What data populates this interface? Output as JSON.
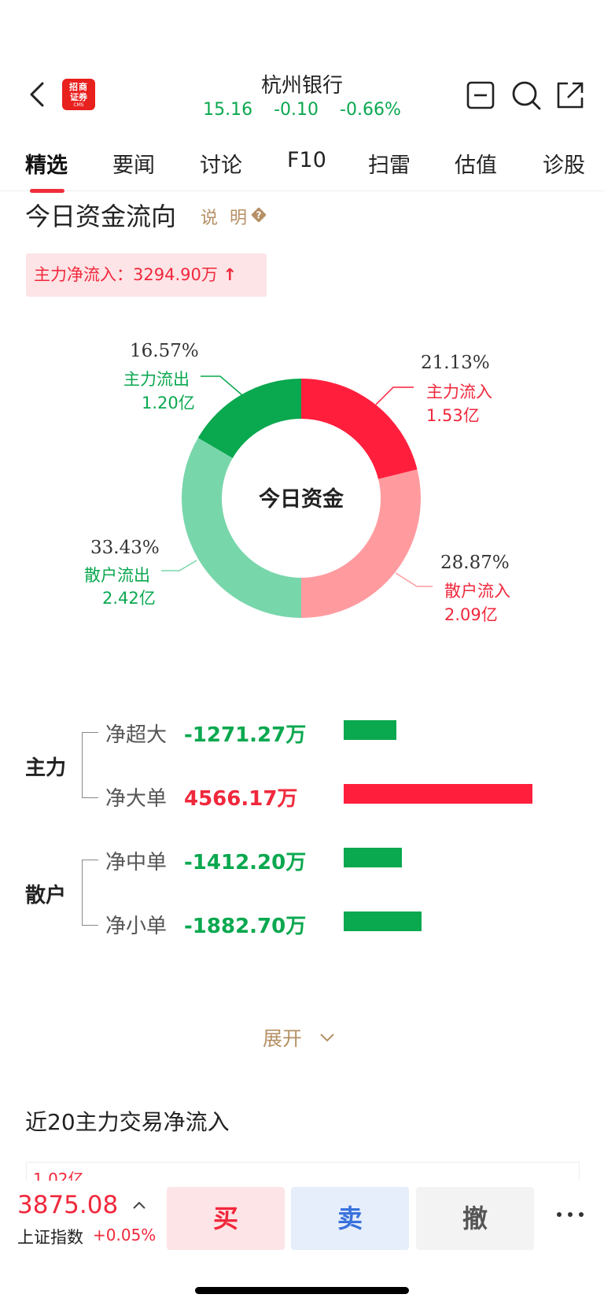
{
  "header": {
    "title": "杭州银行",
    "price": "15.16",
    "change": "-0.10",
    "change_pct": "-0.66%",
    "logo": {
      "line1": "招商",
      "line2": "证券",
      "line3": "CMS"
    },
    "icons": [
      "back-icon",
      "minus-box-icon",
      "search-icon",
      "share-icon"
    ]
  },
  "tabs": [
    {
      "label": "精选",
      "active": true
    },
    {
      "label": "要闻"
    },
    {
      "label": "讨论"
    },
    {
      "label": "F10"
    },
    {
      "label": "扫雷"
    },
    {
      "label": "估值"
    },
    {
      "label": "诊股"
    }
  ],
  "fund_flow": {
    "title": "今日资金流向",
    "help_label": "说 明",
    "net_inflow_label": "主力净流入：3294.90万",
    "donut": {
      "center_label": "今日资金",
      "segments": [
        {
          "name": "主力流入",
          "pct": "21.13%",
          "amount": "1.53亿",
          "value": 21.13,
          "color": "#ff1f3d"
        },
        {
          "name": "散户流入",
          "pct": "28.87%",
          "amount": "2.09亿",
          "value": 28.87,
          "color": "#ff9b9f"
        },
        {
          "name": "散户流出",
          "pct": "33.43%",
          "amount": "2.42亿",
          "value": 33.43,
          "color": "#78d6ab"
        },
        {
          "name": "主力流出",
          "pct": "16.57%",
          "amount": "1.20亿",
          "value": 16.57,
          "color": "#0aa84f"
        }
      ]
    },
    "groups": [
      {
        "label": "主力",
        "rows": [
          {
            "name": "净超大",
            "value": "-1271.27万",
            "amount": -1271.27
          },
          {
            "name": "净大单",
            "value": "4566.17万",
            "amount": 4566.17
          }
        ]
      },
      {
        "label": "散户",
        "rows": [
          {
            "name": "净中单",
            "value": "-1412.20万",
            "amount": -1412.2
          },
          {
            "name": "净小单",
            "value": "-1882.70万",
            "amount": -1882.7
          }
        ]
      }
    ],
    "expand_label": "展开"
  },
  "net20": {
    "title": "近20主力交易净流入",
    "y_label": "1.02亿"
  },
  "bottom_bar": {
    "index_value": "3875.08",
    "index_name": "上证指数",
    "index_change": "+0.05%",
    "buy_label": "买",
    "sell_label": "卖",
    "cancel_label": "撤"
  }
}
